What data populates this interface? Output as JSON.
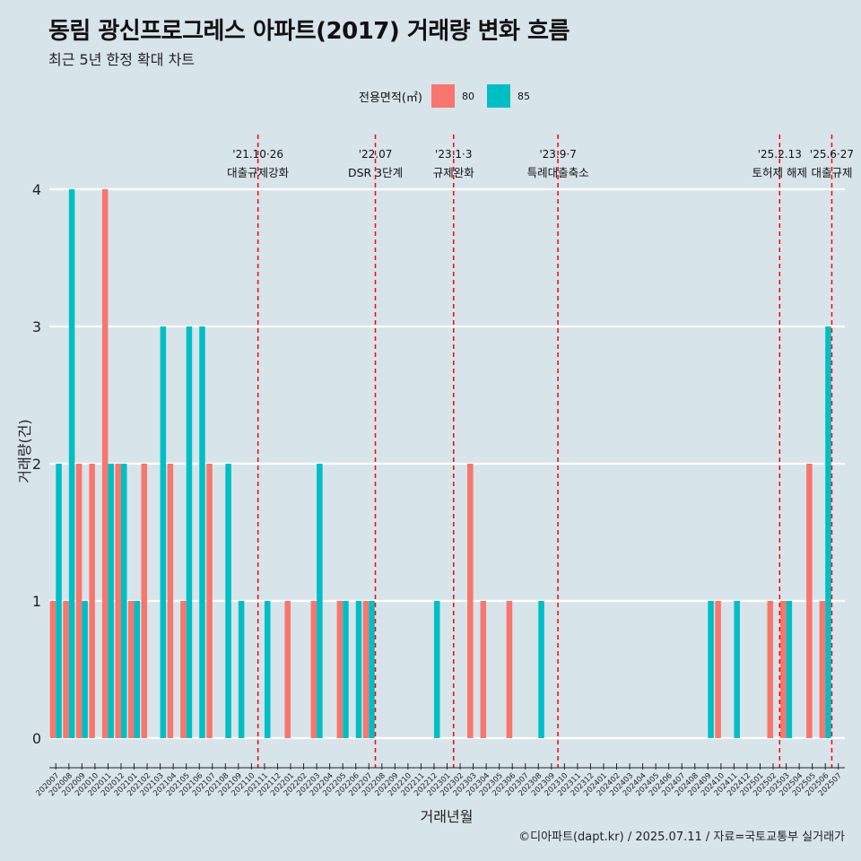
{
  "title": "동림 광신프로그레스 아파트(2017) 거래량 변화 흐름",
  "subtitle": "최근 5년 한정 확대 차트",
  "caption": "©디아파트(dapt.kr) / 2025.07.11 / 자료=국토교통부 실거래가",
  "colors": {
    "s80": "#f8766d",
    "s85": "#00bfc4",
    "bg": "#d7e4ea",
    "grid": "#ffffff",
    "event": "#ff0000"
  },
  "chart_data": {
    "type": "bar",
    "title": "동림 광신프로그레스 아파트(2017) 거래량 변화 흐름",
    "subtitle": "최근 5년 한정 확대 차트",
    "xlabel": "거래년월",
    "ylabel": "거래량(건)",
    "ylim": [
      0,
      4
    ],
    "yticks": [
      0,
      1,
      2,
      3,
      4
    ],
    "grid": true,
    "legend": {
      "title": "전용면적(㎡)",
      "position": "top",
      "entries": [
        "80",
        "85"
      ]
    },
    "categories": [
      "202007",
      "202008",
      "202009",
      "202010",
      "202011",
      "202012",
      "202101",
      "202102",
      "202103",
      "202104",
      "202105",
      "202106",
      "202107",
      "202108",
      "202109",
      "202110",
      "202111",
      "202112",
      "202201",
      "202202",
      "202203",
      "202204",
      "202205",
      "202206",
      "202207",
      "202208",
      "202209",
      "202210",
      "202211",
      "202212",
      "202301",
      "202302",
      "202303",
      "202304",
      "202305",
      "202306",
      "202307",
      "202308",
      "202309",
      "202310",
      "202311",
      "202312",
      "202401",
      "202402",
      "202403",
      "202404",
      "202405",
      "202406",
      "202407",
      "202408",
      "202409",
      "202410",
      "202411",
      "202412",
      "202501",
      "202502",
      "202503",
      "202504",
      "202505",
      "202506",
      "202507"
    ],
    "series": [
      {
        "name": "80",
        "values": [
          1,
          1,
          2,
          2,
          4,
          2,
          1,
          2,
          0,
          2,
          1,
          0,
          2,
          0,
          0,
          0,
          0,
          0,
          1,
          0,
          1,
          0,
          1,
          0,
          1,
          0,
          0,
          0,
          0,
          0,
          0,
          0,
          2,
          1,
          0,
          1,
          0,
          0,
          0,
          0,
          0,
          0,
          0,
          0,
          0,
          0,
          0,
          0,
          0,
          0,
          0,
          1,
          0,
          0,
          0,
          1,
          1,
          0,
          2,
          1,
          0
        ]
      },
      {
        "name": "85",
        "values": [
          2,
          4,
          1,
          0,
          2,
          2,
          1,
          0,
          3,
          0,
          3,
          3,
          0,
          2,
          1,
          0,
          1,
          0,
          0,
          0,
          2,
          0,
          1,
          1,
          1,
          0,
          0,
          0,
          0,
          1,
          0,
          0,
          0,
          0,
          0,
          0,
          0,
          1,
          0,
          0,
          0,
          0,
          0,
          0,
          0,
          0,
          0,
          0,
          0,
          0,
          1,
          0,
          1,
          0,
          0,
          0,
          1,
          0,
          0,
          3,
          0
        ]
      }
    ],
    "events": [
      {
        "line1": "'21.10·26",
        "line2": "대출규제강화",
        "after": "202110"
      },
      {
        "line1": "'22.07",
        "line2": "DSR 3단계",
        "after": "202207"
      },
      {
        "line1": "'23.1·3",
        "line2": "규제완화",
        "after": "202301"
      },
      {
        "line1": "'23.9·7",
        "line2": "특례대출축소",
        "after": "202309"
      },
      {
        "line1": "'25.2.13",
        "line2": "토허제 해제",
        "after": "202502"
      },
      {
        "line1": "'25.6·27",
        "line2": "대출규제",
        "after": "202506"
      }
    ]
  }
}
